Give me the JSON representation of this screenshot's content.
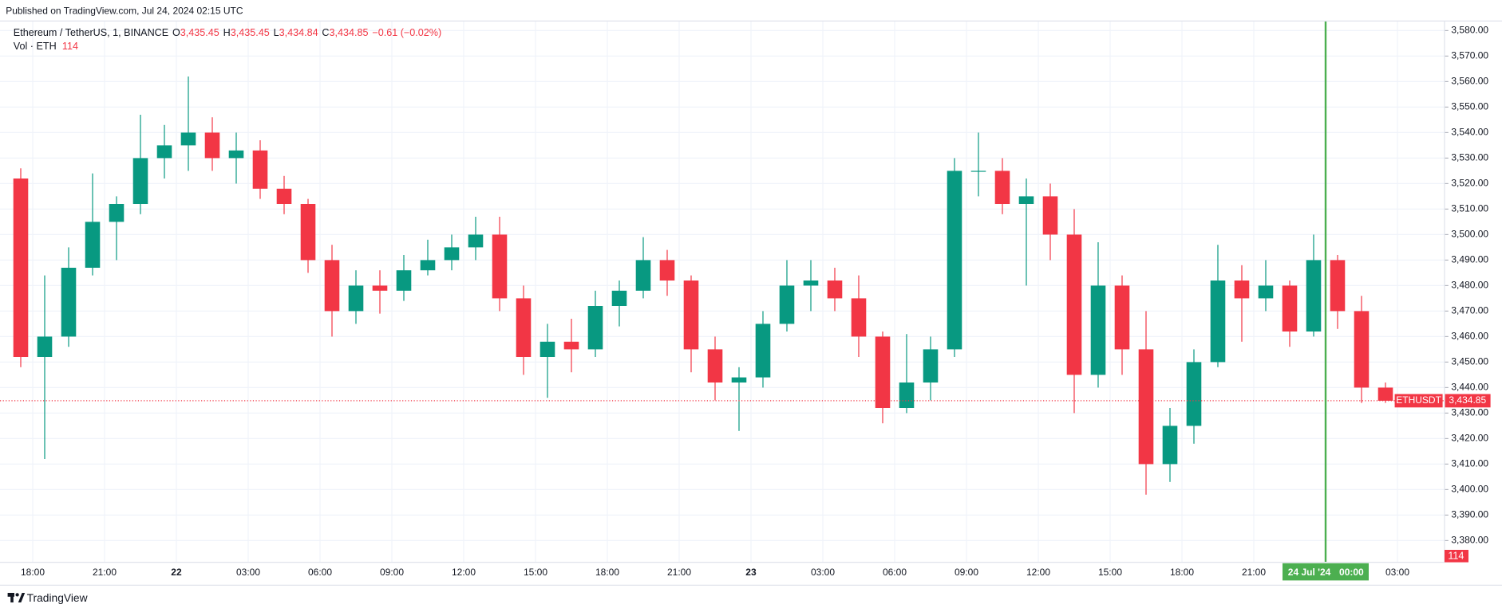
{
  "header": "Published on TradingView.com, Jul 24, 2024 02:15 UTC",
  "footer": "TradingView",
  "legend": {
    "name": "Ethereum / TetherUS, 1, BINANCE",
    "ohlc": [
      {
        "key": "O",
        "value": "3,435.45"
      },
      {
        "key": "H",
        "value": "3,435.45"
      },
      {
        "key": "L",
        "value": "3,434.84"
      },
      {
        "key": "C",
        "value": "3,434.85"
      }
    ],
    "change": "−0.61 (−0.02%)",
    "volume_name": "Vol · ETH",
    "volume_value": "114"
  },
  "chart_data": {
    "type": "candlestick",
    "up_color": "#089981",
    "down_color": "#f23645",
    "x": [
      "2024-07-21T17:00",
      "2024-07-21T18:00",
      "2024-07-21T19:00",
      "2024-07-21T20:00",
      "2024-07-21T21:00",
      "2024-07-21T22:00",
      "2024-07-21T23:00",
      "2024-07-22T00:00",
      "2024-07-22T01:00",
      "2024-07-22T02:00",
      "2024-07-22T03:00",
      "2024-07-22T04:00",
      "2024-07-22T05:00",
      "2024-07-22T06:00",
      "2024-07-22T07:00",
      "2024-07-22T08:00",
      "2024-07-22T09:00",
      "2024-07-22T10:00",
      "2024-07-22T11:00",
      "2024-07-22T12:00",
      "2024-07-22T13:00",
      "2024-07-22T14:00",
      "2024-07-22T15:00",
      "2024-07-22T16:00",
      "2024-07-22T17:00",
      "2024-07-22T18:00",
      "2024-07-22T19:00",
      "2024-07-22T20:00",
      "2024-07-22T21:00",
      "2024-07-22T22:00",
      "2024-07-22T23:00",
      "2024-07-23T00:00",
      "2024-07-23T01:00",
      "2024-07-23T02:00",
      "2024-07-23T03:00",
      "2024-07-23T04:00",
      "2024-07-23T05:00",
      "2024-07-23T06:00",
      "2024-07-23T07:00",
      "2024-07-23T08:00",
      "2024-07-23T09:00",
      "2024-07-23T10:00",
      "2024-07-23T11:00",
      "2024-07-23T12:00",
      "2024-07-23T13:00",
      "2024-07-23T14:00",
      "2024-07-23T15:00",
      "2024-07-23T16:00",
      "2024-07-23T17:00",
      "2024-07-23T18:00",
      "2024-07-23T19:00",
      "2024-07-23T20:00",
      "2024-07-23T21:00",
      "2024-07-23T22:00",
      "2024-07-23T23:00",
      "2024-07-24T00:00",
      "2024-07-24T01:00",
      "2024-07-24T02:00"
    ],
    "open": [
      3522,
      3452,
      3460,
      3487,
      3505,
      3512,
      3530,
      3535,
      3540,
      3530,
      3533,
      3518,
      3512,
      3490,
      3470,
      3480,
      3478,
      3486,
      3490,
      3495,
      3500,
      3475,
      3452,
      3458,
      3455,
      3472,
      3478,
      3490,
      3482,
      3455,
      3442,
      3444,
      3465,
      3480,
      3482,
      3475,
      3460,
      3432,
      3442,
      3455,
      3525,
      3525,
      3512,
      3515,
      3500,
      3445,
      3480,
      3455,
      3410,
      3425,
      3450,
      3482,
      3475,
      3480,
      3462,
      3490,
      3470,
      3440
    ],
    "high": [
      3526,
      3484,
      3495,
      3524,
      3515,
      3547,
      3543,
      3562,
      3546,
      3540,
      3537,
      3523,
      3514,
      3496,
      3486,
      3486,
      3492,
      3498,
      3500,
      3507,
      3507,
      3480,
      3465,
      3467,
      3478,
      3482,
      3499,
      3494,
      3484,
      3460,
      3448,
      3470,
      3490,
      3490,
      3487,
      3484,
      3462,
      3461,
      3460,
      3530,
      3540,
      3530,
      3522,
      3520,
      3510,
      3497,
      3484,
      3470,
      3432,
      3455,
      3496,
      3488,
      3490,
      3482,
      3500,
      3492,
      3476,
      3442
    ],
    "low": [
      3448,
      3412,
      3456,
      3484,
      3490,
      3508,
      3522,
      3525,
      3525,
      3520,
      3514,
      3508,
      3485,
      3460,
      3465,
      3469,
      3474,
      3484,
      3486,
      3490,
      3470,
      3445,
      3436,
      3446,
      3452,
      3464,
      3475,
      3476,
      3446,
      3435,
      3423,
      3440,
      3462,
      3470,
      3470,
      3452,
      3426,
      3430,
      3435,
      3452,
      3515,
      3508,
      3480,
      3490,
      3430,
      3440,
      3445,
      3398,
      3403,
      3418,
      3448,
      3458,
      3470,
      3456,
      3460,
      3463,
      3434,
      3434
    ],
    "close": [
      3452,
      3460,
      3487,
      3505,
      3512,
      3530,
      3535,
      3540,
      3530,
      3533,
      3518,
      3512,
      3490,
      3470,
      3480,
      3478,
      3486,
      3490,
      3495,
      3500,
      3475,
      3452,
      3458,
      3455,
      3472,
      3478,
      3490,
      3482,
      3455,
      3442,
      3444,
      3465,
      3480,
      3482,
      3475,
      3460,
      3432,
      3442,
      3455,
      3525,
      3525,
      3512,
      3515,
      3500,
      3445,
      3480,
      3455,
      3410,
      3425,
      3450,
      3482,
      3475,
      3480,
      3462,
      3490,
      3470,
      3440,
      3434.85
    ],
    "xlim": [
      "2024-07-21T16:38",
      "2024-07-24T04:58"
    ],
    "xticks": [
      {
        "value": "2024-07-21T18:00",
        "label": "18:00"
      },
      {
        "value": "2024-07-21T21:00",
        "label": "21:00"
      },
      {
        "value": "2024-07-22T00:00",
        "label": "22"
      },
      {
        "value": "2024-07-22T03:00",
        "label": "03:00"
      },
      {
        "value": "2024-07-22T06:00",
        "label": "06:00"
      },
      {
        "value": "2024-07-22T09:00",
        "label": "09:00"
      },
      {
        "value": "2024-07-22T12:00",
        "label": "12:00"
      },
      {
        "value": "2024-07-22T15:00",
        "label": "15:00"
      },
      {
        "value": "2024-07-22T18:00",
        "label": "18:00"
      },
      {
        "value": "2024-07-22T21:00",
        "label": "21:00"
      },
      {
        "value": "2024-07-23T00:00",
        "label": "23"
      },
      {
        "value": "2024-07-23T03:00",
        "label": "03:00"
      },
      {
        "value": "2024-07-23T06:00",
        "label": "06:00"
      },
      {
        "value": "2024-07-23T09:00",
        "label": "09:00"
      },
      {
        "value": "2024-07-23T12:00",
        "label": "12:00"
      },
      {
        "value": "2024-07-23T15:00",
        "label": "15:00"
      },
      {
        "value": "2024-07-23T18:00",
        "label": "18:00"
      },
      {
        "value": "2024-07-23T21:00",
        "label": "21:00"
      },
      {
        "value": "2024-07-24T03:00",
        "label": "03:00"
      }
    ],
    "ylim": [
      3371.5,
      3583.75
    ],
    "yticks": [
      {
        "value": 3380,
        "label": "3,380.00"
      },
      {
        "value": 3390,
        "label": "3,390.00"
      },
      {
        "value": 3400,
        "label": "3,400.00"
      },
      {
        "value": 3410,
        "label": "3,410.00"
      },
      {
        "value": 3420,
        "label": "3,420.00"
      },
      {
        "value": 3430,
        "label": "3,430.00"
      },
      {
        "value": 3440,
        "label": "3,440.00"
      },
      {
        "value": 3450,
        "label": "3,450.00"
      },
      {
        "value": 3460,
        "label": "3,460.00"
      },
      {
        "value": 3470,
        "label": "3,470.00"
      },
      {
        "value": 3480,
        "label": "3,480.00"
      },
      {
        "value": 3490,
        "label": "3,490.00"
      },
      {
        "value": 3500,
        "label": "3,500.00"
      },
      {
        "value": 3510,
        "label": "3,510.00"
      },
      {
        "value": 3520,
        "label": "3,520.00"
      },
      {
        "value": 3530,
        "label": "3,530.00"
      },
      {
        "value": 3540,
        "label": "3,540.00"
      },
      {
        "value": 3550,
        "label": "3,550.00"
      },
      {
        "value": 3560,
        "label": "3,560.00"
      },
      {
        "value": 3570,
        "label": "3,570.00"
      },
      {
        "value": 3580,
        "label": "3,580.00"
      }
    ],
    "grid": true,
    "last_price": {
      "value": 3434.85,
      "label": "3,434.85",
      "symbol": "ETHUSDT"
    },
    "crosshair": {
      "x": "2024-07-24T00:00",
      "date_label": "24 Jul '24",
      "time_label": "00:00",
      "color": "#4caf50"
    }
  }
}
